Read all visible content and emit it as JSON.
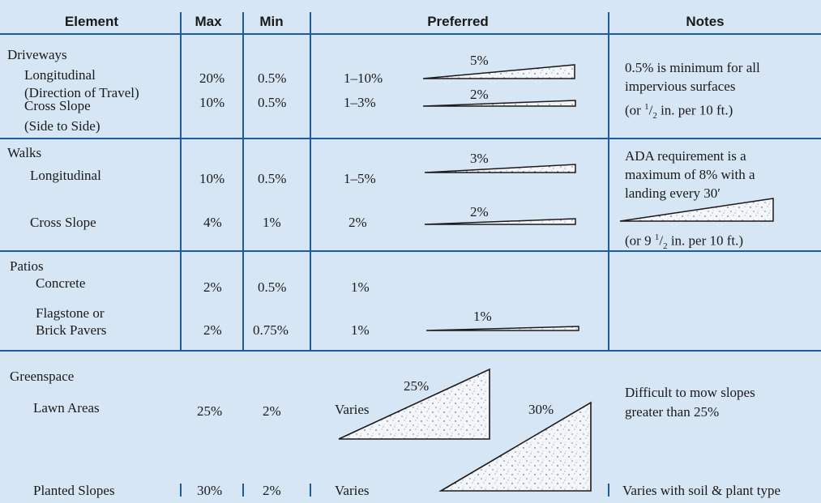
{
  "headers": {
    "element": "Element",
    "max": "Max",
    "min": "Min",
    "preferred": "Preferred",
    "notes": "Notes"
  },
  "driveways": {
    "title": "Driveways",
    "longitudinal": "Longitudinal",
    "direction": "(Direction of Travel)",
    "cross": "Cross Slope",
    "side": "(Side to Side)",
    "long_max": "20%",
    "long_min": "0.5%",
    "long_pref": "1–10%",
    "long_label": "5%",
    "cross_max": "10%",
    "cross_min": "0.5%",
    "cross_pref": "1–3%",
    "cross_label": "2%",
    "note1": "0.5% is minimum for all",
    "note2": "impervious surfaces",
    "note3_pre": "(or ",
    "note3_num": "1",
    "note3_slash": "/",
    "note3_den": "2",
    "note3_post": " in. per 10 ft.)"
  },
  "walks": {
    "title": "Walks",
    "longitudinal": "Longitudinal",
    "cross": "Cross Slope",
    "long_max": "10%",
    "long_min": "0.5%",
    "long_pref": "1–5%",
    "long_label": "3%",
    "cross_max": "4%",
    "cross_min": "1%",
    "cross_pref": "2%",
    "cross_label": "2%",
    "note1": "ADA requirement is a",
    "note2": "maximum of 8% with a",
    "note3": "landing every 30′",
    "note4_pre": "(or 9 ",
    "note4_num": "1",
    "note4_slash": "/",
    "note4_den": "2",
    "note4_post": " in. per 10 ft.)"
  },
  "patios": {
    "title": "Patios",
    "concrete": "Concrete",
    "flagstone": "Flagstone or",
    "brick": "Brick Pavers",
    "concrete_max": "2%",
    "concrete_min": "0.5%",
    "concrete_pref": "1%",
    "flag_max": "2%",
    "flag_min": "0.75%",
    "flag_pref": "1%",
    "flag_label": "1%"
  },
  "greenspace": {
    "title": "Greenspace",
    "lawn": "Lawn Areas",
    "planted": "Planted Slopes",
    "lawn_max": "25%",
    "lawn_min": "2%",
    "lawn_pref": "Varies",
    "lawn_label": "25%",
    "planted_max": "30%",
    "planted_min": "2%",
    "planted_pref": "Varies",
    "planted_label": "30%",
    "note_lawn1": "Difficult to mow slopes",
    "note_lawn2": "greater than 25%",
    "note_planted": "Varies with soil & plant type"
  },
  "colors": {
    "background": "#d6e6f5",
    "rule": "#1f5c9e",
    "text": "#1a1a1a"
  }
}
